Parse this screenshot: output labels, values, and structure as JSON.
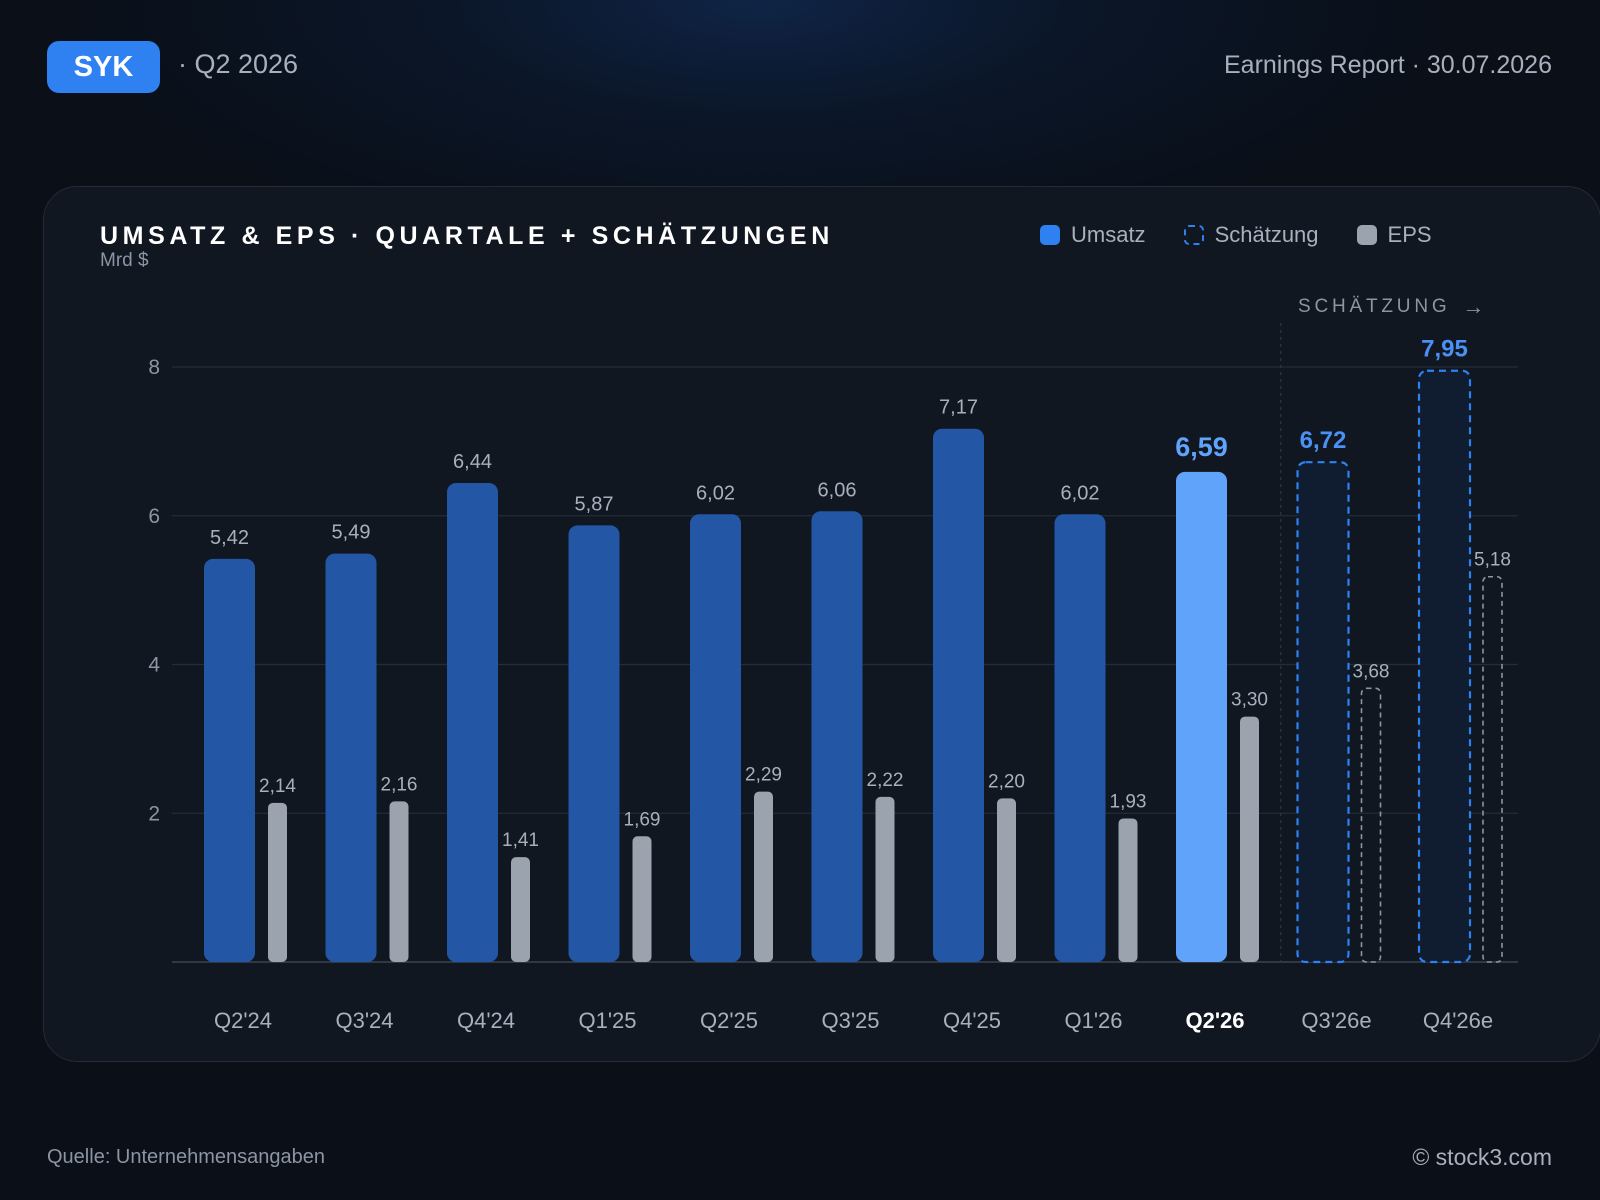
{
  "header": {
    "ticker": "SYK",
    "period": "· Q2 2026",
    "report": "Earnings Report · 30.07.2026"
  },
  "legend": {
    "revenue": "Umsatz",
    "estimate": "Schätzung",
    "eps": "EPS"
  },
  "estimate_marker": "SCHÄTZUNG",
  "footer": {
    "source": "Quelle: Unternehmensangaben",
    "brand": "© stock3.com"
  },
  "colors": {
    "revenue": "#2456a6",
    "current": "#5fa3fb",
    "estimate_stroke": "#2f80f0",
    "estimate_label": "#4a90f5",
    "eps": "#9aa3ae",
    "estimate_eps_stroke": "#8b95a3"
  },
  "chart_data": {
    "type": "bar",
    "title": "UMSATZ & EPS · QUARTALE + SCHÄTZUNGEN",
    "ylabel": "Mrd $",
    "ylim": [
      0,
      8
    ],
    "yticks": [
      2,
      4,
      6,
      8
    ],
    "grid": true,
    "legend_position": "top-right",
    "categories": [
      "Q2'24",
      "Q3'24",
      "Q4'24",
      "Q1'25",
      "Q2'25",
      "Q3'25",
      "Q4'25",
      "Q1'26",
      "Q2'26",
      "Q3'26e",
      "Q4'26e"
    ],
    "current_index": 8,
    "estimate_from_index": 9,
    "series": [
      {
        "name": "Umsatz",
        "values": [
          5.42,
          5.49,
          6.44,
          5.87,
          6.02,
          6.06,
          7.17,
          6.02,
          6.59,
          6.72,
          7.95
        ],
        "labels": [
          "5,42",
          "5,49",
          "6,44",
          "5,87",
          "6,02",
          "6,06",
          "7,17",
          "6,02",
          "6,59",
          "6,72",
          "7,95"
        ]
      },
      {
        "name": "EPS",
        "values": [
          2.14,
          2.16,
          1.41,
          1.69,
          2.29,
          2.22,
          2.2,
          1.93,
          3.3,
          3.68,
          5.18
        ],
        "labels": [
          "2,14",
          "2,16",
          "1,41",
          "1,69",
          "2,29",
          "2,22",
          "2,20",
          "1,93",
          "3,30",
          "3,68",
          "5,18"
        ]
      }
    ]
  }
}
